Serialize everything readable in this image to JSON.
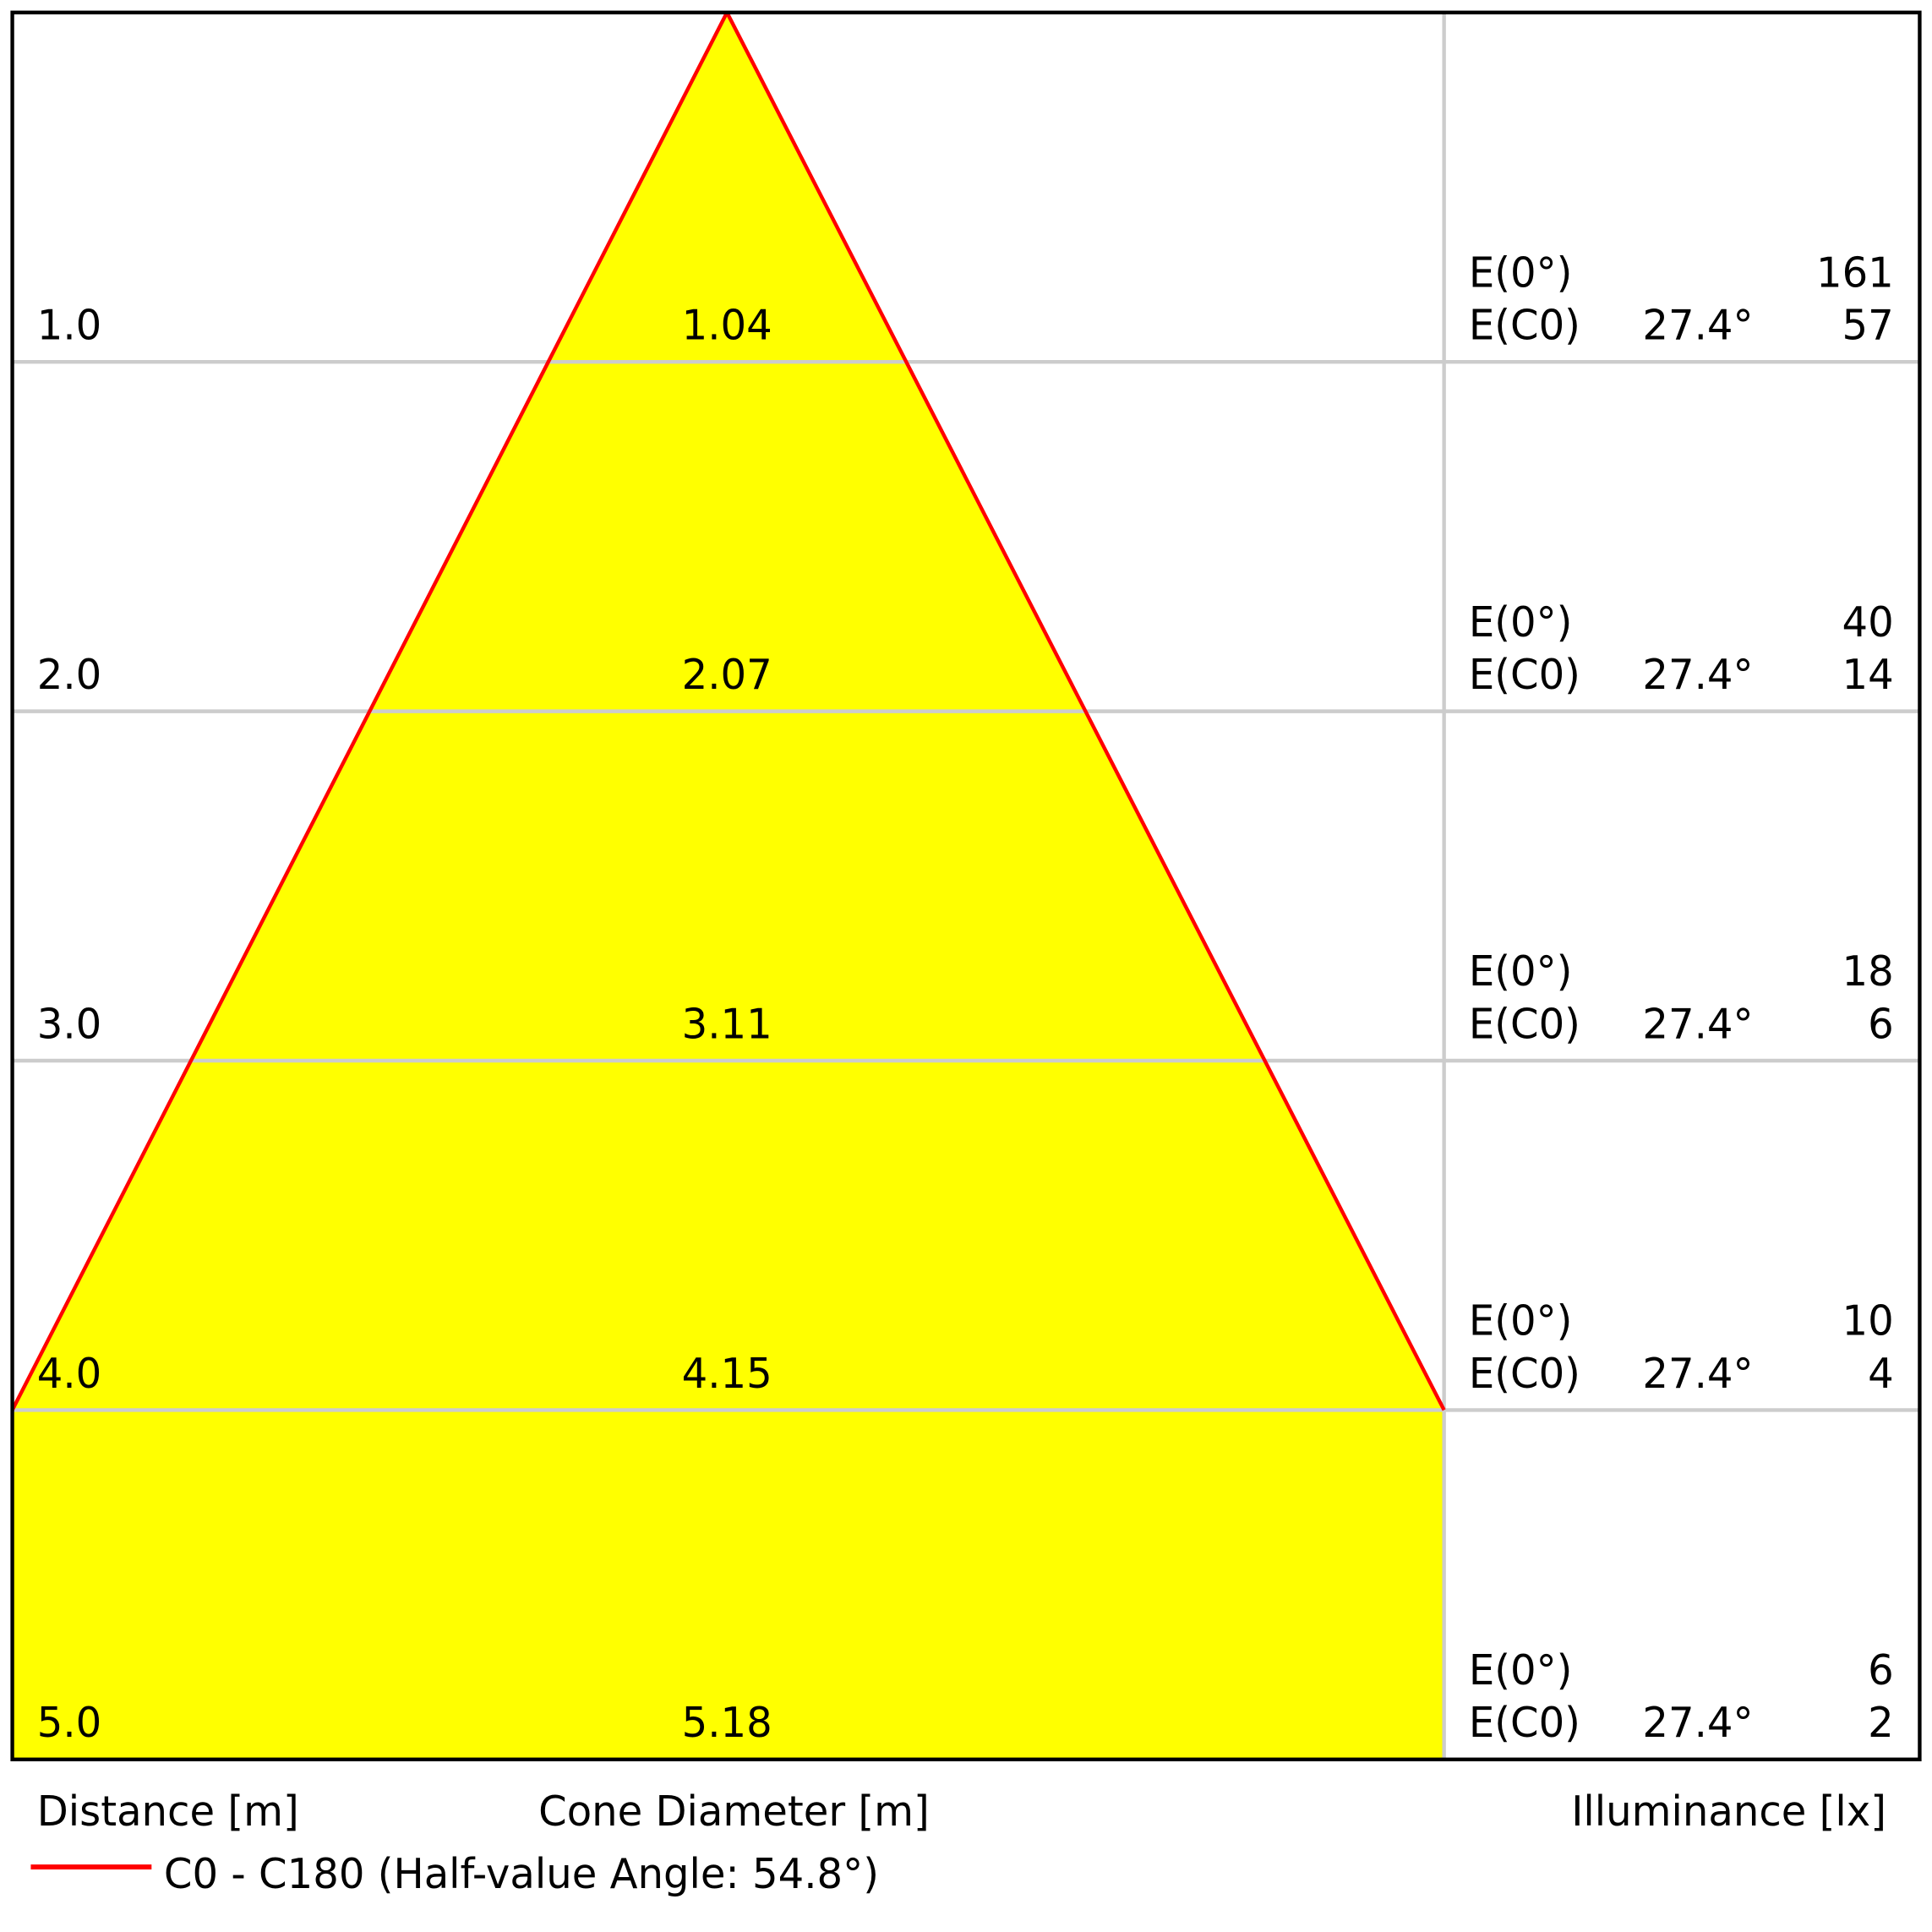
{
  "chart_data": {
    "type": "table",
    "title": "",
    "colors": {
      "cone_fill": "#ffff00",
      "cone_line": "#ff0000",
      "grid": "#cccccc",
      "border": "#000000"
    },
    "rows": [
      {
        "distance": "1.0",
        "diameter": "1.04",
        "e0_label": "E(0°)",
        "e0": "161",
        "ec_label": "E(C0)",
        "angle": "27.4°",
        "ec": "57"
      },
      {
        "distance": "2.0",
        "diameter": "2.07",
        "e0_label": "E(0°)",
        "e0": "40",
        "ec_label": "E(C0)",
        "angle": "27.4°",
        "ec": "14"
      },
      {
        "distance": "3.0",
        "diameter": "3.11",
        "e0_label": "E(0°)",
        "e0": "18",
        "ec_label": "E(C0)",
        "angle": "27.4°",
        "ec": "6"
      },
      {
        "distance": "4.0",
        "diameter": "4.15",
        "e0_label": "E(0°)",
        "e0": "10",
        "ec_label": "E(C0)",
        "angle": "27.4°",
        "ec": "4"
      },
      {
        "distance": "5.0",
        "diameter": "5.18",
        "e0_label": "E(0°)",
        "e0": "6",
        "ec_label": "E(C0)",
        "angle": "27.4°",
        "ec": "2"
      }
    ],
    "xlabel_distance": "Distance [m]",
    "xlabel_diameter": "Cone Diameter [m]",
    "xlabel_illuminance": "Illuminance [lx]",
    "legend": [
      {
        "name": "C0 - C180 (Half-value Angle: 54.8°)",
        "color": "#ff0000"
      }
    ],
    "half_value_angle_deg": 54.8
  }
}
